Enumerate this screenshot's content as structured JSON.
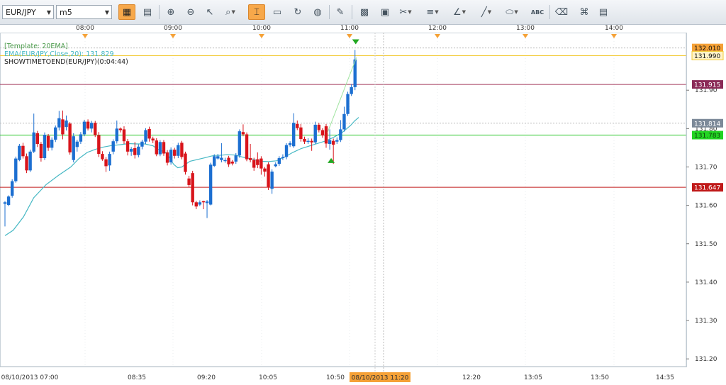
{
  "toolbar": {
    "symbol": "EUR/JPY",
    "timeframe": "m5",
    "icons": [
      "chart-type-icon",
      "properties-icon",
      "zoom-in-icon",
      "zoom-out-icon",
      "cursor-icon",
      "zoom-area-icon",
      "crosshair-icon",
      "screenshot-icon",
      "refresh-icon",
      "globe-icon",
      "ruler-icon",
      "indicators-icon",
      "strategy-icon",
      "tools-icon",
      "lines-icon",
      "fibonacci-icon",
      "trendline-icon",
      "shapes-icon",
      "text-icon",
      "eraser-icon",
      "network-icon",
      "more-icon"
    ]
  },
  "annotations": {
    "template": "[Template: 20EMA]",
    "ema": "EMA(EUR/JPY,Close,20): 131.829",
    "timer": "SHOWTIMETOEND(EUR/JPY)(0:04:44)"
  },
  "colors": {
    "bull": "#1c6fd1",
    "bear": "#d8141b",
    "ema": "#46b8c4",
    "green_line": "#22c422",
    "maroon_line": "#a33a5c",
    "red_line": "#c01a1a",
    "yellow_line": "#f3cb3a",
    "axis_highlight": "#f5a137"
  },
  "chart_data": {
    "type": "candlestick",
    "symbol": "EUR/JPY",
    "timeframe": "m5",
    "ylim": [
      131.18,
      132.05
    ],
    "y_ticks": [
      131.2,
      131.3,
      131.4,
      131.5,
      131.6,
      131.7,
      131.8,
      131.9
    ],
    "y_tick_labels": [
      "131.20",
      "131.30",
      "131.40",
      "131.50",
      "131.60",
      "131.70",
      "131.80",
      "131.90"
    ],
    "top_time_labels": [
      "08:00",
      "09:00",
      "10:00",
      "11:00",
      "12:00",
      "13:00",
      "14:00"
    ],
    "bottom_time_labels": [
      "08/10/2013 07:00",
      "08:35",
      "09:20",
      "10:05",
      "10:50",
      "12:20",
      "13:05",
      "13:50",
      "14:35"
    ],
    "crosshair_time_label": "08/10/2013 11:20",
    "price_labels": [
      {
        "text": "132.010",
        "value": 132.01,
        "style": "orange"
      },
      {
        "text": "131.990",
        "value": 131.99,
        "style": "yellow"
      },
      {
        "text": "131.915",
        "value": 131.915,
        "style": "maroon"
      },
      {
        "text": "131.814",
        "value": 131.814,
        "style": "gray"
      },
      {
        "text": "131.783",
        "value": 131.783,
        "style": "green"
      },
      {
        "text": "131.647",
        "value": 131.647,
        "style": "red"
      }
    ],
    "horizontal_lines": [
      {
        "value": 131.99,
        "color": "yellow"
      },
      {
        "value": 131.915,
        "color": "maroon"
      },
      {
        "value": 131.783,
        "color": "green"
      },
      {
        "value": 131.647,
        "color": "red"
      }
    ],
    "candles": [
      [
        131.604,
        131.608,
        131.545,
        131.611
      ],
      [
        131.601,
        131.623,
        131.598,
        131.626
      ],
      [
        131.625,
        131.663,
        131.62,
        131.668
      ],
      [
        131.663,
        131.722,
        131.659,
        131.727
      ],
      [
        131.718,
        131.755,
        131.715,
        131.76
      ],
      [
        131.755,
        131.728,
        131.722,
        131.763
      ],
      [
        131.728,
        131.691,
        131.684,
        131.735
      ],
      [
        131.691,
        131.74,
        131.687,
        131.745
      ],
      [
        131.74,
        131.79,
        131.736,
        131.839
      ],
      [
        131.788,
        131.76,
        131.752,
        131.794
      ],
      [
        131.76,
        131.723,
        131.714,
        131.765
      ],
      [
        131.723,
        131.784,
        131.718,
        131.79
      ],
      [
        131.781,
        131.75,
        131.742,
        131.786
      ],
      [
        131.75,
        131.771,
        131.743,
        131.777
      ],
      [
        131.771,
        131.803,
        131.765,
        131.808
      ],
      [
        131.803,
        131.827,
        131.795,
        131.846
      ],
      [
        131.824,
        131.785,
        131.772,
        131.847
      ],
      [
        131.804,
        131.821,
        131.795,
        131.834
      ],
      [
        131.813,
        131.738,
        131.732,
        131.817
      ],
      [
        131.718,
        131.78,
        131.712,
        131.788
      ],
      [
        131.752,
        131.766,
        131.74,
        131.771
      ],
      [
        131.766,
        131.785,
        131.76,
        131.791
      ],
      [
        131.785,
        131.818,
        131.78,
        131.823
      ],
      [
        131.818,
        131.8,
        131.795,
        131.824
      ],
      [
        131.8,
        131.815,
        131.79,
        131.82
      ],
      [
        131.815,
        131.783,
        131.778,
        131.82
      ],
      [
        131.783,
        131.734,
        131.726,
        131.791
      ],
      [
        131.734,
        131.72,
        131.716,
        131.741
      ],
      [
        131.72,
        131.702,
        131.687,
        131.726
      ],
      [
        131.704,
        131.734,
        131.69,
        131.74
      ],
      [
        131.74,
        131.767,
        131.733,
        131.772
      ],
      [
        131.767,
        131.8,
        131.761,
        131.821
      ],
      [
        131.8,
        131.796,
        131.79,
        131.803
      ],
      [
        131.798,
        131.767,
        131.76,
        131.806
      ],
      [
        131.767,
        131.74,
        131.73,
        131.773
      ],
      [
        131.74,
        131.747,
        131.729,
        131.752
      ],
      [
        131.749,
        131.731,
        131.722,
        131.765
      ],
      [
        131.731,
        131.753,
        131.725,
        131.759
      ],
      [
        131.753,
        131.766,
        131.746,
        131.771
      ],
      [
        131.766,
        131.796,
        131.76,
        131.801
      ],
      [
        131.799,
        131.774,
        131.766,
        131.805
      ],
      [
        131.774,
        131.769,
        131.762,
        131.779
      ],
      [
        131.769,
        131.733,
        131.728,
        131.775
      ],
      [
        131.733,
        131.765,
        131.728,
        131.77
      ],
      [
        131.765,
        131.735,
        131.729,
        131.77
      ],
      [
        131.738,
        131.711,
        131.704,
        131.744
      ],
      [
        131.712,
        131.745,
        131.706,
        131.751
      ],
      [
        131.745,
        131.729,
        131.722,
        131.75
      ],
      [
        131.729,
        131.757,
        131.723,
        131.763
      ],
      [
        131.763,
        131.726,
        131.72,
        131.768
      ],
      [
        131.735,
        131.687,
        131.68,
        131.74
      ],
      [
        131.67,
        131.653,
        131.647,
        131.677
      ],
      [
        131.684,
        131.608,
        131.6,
        131.69
      ],
      [
        131.608,
        131.597,
        131.59,
        131.612
      ],
      [
        131.602,
        131.608,
        131.598,
        131.613
      ],
      [
        131.611,
        131.608,
        131.59,
        131.612
      ],
      [
        131.606,
        131.61,
        131.567,
        131.614
      ],
      [
        131.602,
        131.706,
        131.6,
        131.711
      ],
      [
        131.703,
        131.728,
        131.7,
        131.733
      ],
      [
        131.722,
        131.728,
        131.719,
        131.734
      ],
      [
        131.718,
        131.724,
        131.712,
        131.762
      ],
      [
        131.716,
        131.718,
        131.711,
        131.724
      ],
      [
        131.724,
        131.707,
        131.7,
        131.729
      ],
      [
        131.714,
        131.709,
        131.704,
        131.718
      ],
      [
        131.714,
        131.73,
        131.708,
        131.736
      ],
      [
        131.73,
        131.793,
        131.724,
        131.798
      ],
      [
        131.791,
        131.785,
        131.78,
        131.811
      ],
      [
        131.785,
        131.72,
        131.715,
        131.79
      ],
      [
        131.723,
        131.718,
        131.712,
        131.76
      ],
      [
        131.718,
        131.698,
        131.69,
        131.724
      ],
      [
        131.72,
        131.705,
        131.697,
        131.738
      ],
      [
        131.722,
        131.696,
        131.68,
        131.728
      ],
      [
        131.696,
        131.688,
        131.675,
        131.7
      ],
      [
        131.707,
        131.648,
        131.64,
        131.712
      ],
      [
        131.643,
        131.688,
        131.63,
        131.694
      ],
      [
        131.702,
        131.707,
        131.699,
        131.712
      ],
      [
        131.708,
        131.723,
        131.703,
        131.728
      ],
      [
        131.723,
        131.726,
        131.718,
        131.733
      ],
      [
        131.726,
        131.757,
        131.72,
        131.762
      ],
      [
        131.757,
        131.762,
        131.752,
        131.767
      ],
      [
        131.754,
        131.815,
        131.75,
        131.84
      ],
      [
        131.812,
        131.801,
        131.796,
        131.821
      ],
      [
        131.803,
        131.773,
        131.766,
        131.812
      ],
      [
        131.773,
        131.766,
        131.76,
        131.779
      ],
      [
        131.766,
        131.768,
        131.76,
        131.775
      ],
      [
        131.768,
        131.764,
        131.742,
        131.774
      ],
      [
        131.764,
        131.81,
        131.76,
        131.818
      ],
      [
        131.81,
        131.796,
        131.79,
        131.815
      ],
      [
        131.796,
        131.782,
        131.776,
        131.801
      ],
      [
        131.806,
        131.761,
        131.75,
        131.812
      ],
      [
        131.76,
        131.77,
        131.745,
        131.798
      ],
      [
        131.768,
        131.758,
        131.708,
        131.774
      ],
      [
        131.766,
        131.77,
        131.76,
        131.777
      ],
      [
        131.77,
        131.798,
        131.765,
        131.822
      ],
      [
        131.798,
        131.838,
        131.792,
        131.857
      ],
      [
        131.838,
        131.89,
        131.833,
        131.896
      ],
      [
        131.89,
        131.908,
        131.885,
        131.916
      ],
      [
        131.908,
        131.98,
        131.9,
        132.005
      ]
    ],
    "ema_points": [
      [
        0,
        131.521
      ],
      [
        4,
        131.535
      ],
      [
        9,
        131.57
      ],
      [
        14,
        131.62
      ],
      [
        20,
        131.654
      ],
      [
        26,
        131.678
      ],
      [
        32,
        131.7
      ],
      [
        36,
        131.722
      ],
      [
        40,
        131.738
      ],
      [
        44,
        131.746
      ],
      [
        48,
        131.752
      ],
      [
        52,
        131.756
      ],
      [
        56,
        131.758
      ],
      [
        60,
        131.761
      ],
      [
        64,
        131.76
      ],
      [
        68,
        131.76
      ],
      [
        72,
        131.755
      ],
      [
        74,
        131.747
      ],
      [
        78,
        131.738
      ],
      [
        80,
        131.724
      ],
      [
        82,
        131.707
      ],
      [
        84,
        131.698
      ],
      [
        86,
        131.7
      ],
      [
        88,
        131.708
      ],
      [
        90,
        131.715
      ],
      [
        94,
        131.72
      ],
      [
        98,
        131.725
      ],
      [
        100,
        131.728
      ],
      [
        102,
        131.73
      ],
      [
        104,
        131.73
      ],
      [
        108,
        131.732
      ],
      [
        112,
        131.731
      ],
      [
        116,
        131.725
      ],
      [
        120,
        131.721
      ],
      [
        124,
        131.715
      ],
      [
        128,
        131.714
      ],
      [
        132,
        131.716
      ],
      [
        136,
        131.726
      ],
      [
        140,
        131.738
      ],
      [
        144,
        131.748
      ],
      [
        150,
        131.758
      ],
      [
        156,
        131.768
      ],
      [
        160,
        131.778
      ],
      [
        164,
        131.79
      ],
      [
        168,
        131.808
      ],
      [
        170,
        131.82
      ],
      [
        172,
        131.829
      ]
    ],
    "arrows": [
      {
        "type": "down",
        "value": 132.025,
        "color": "#22a822"
      },
      {
        "type": "up",
        "value": 131.716,
        "color": "#22a822"
      }
    ]
  }
}
